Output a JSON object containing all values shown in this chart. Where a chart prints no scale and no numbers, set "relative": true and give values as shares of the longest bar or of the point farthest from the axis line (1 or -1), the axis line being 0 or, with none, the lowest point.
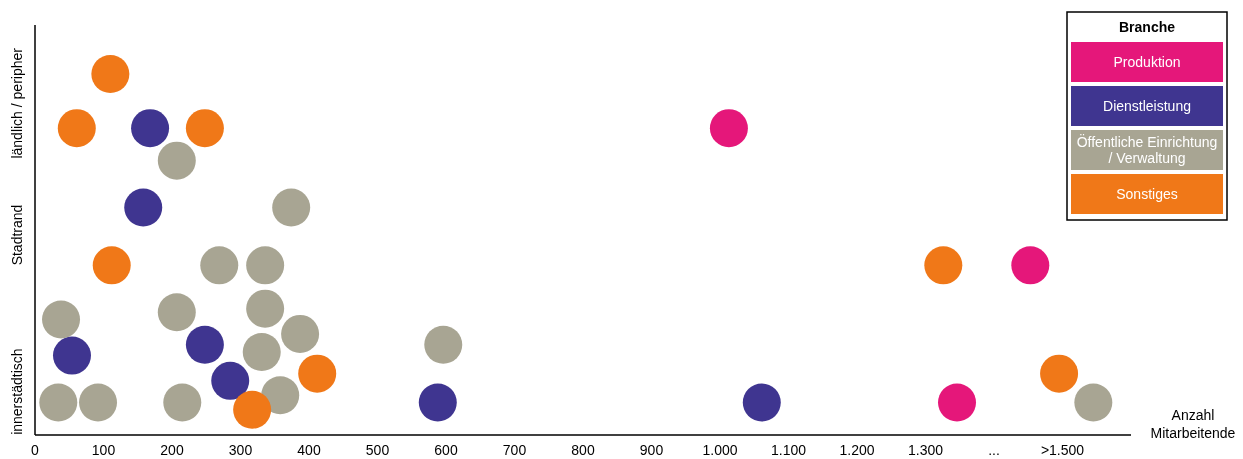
{
  "chart_data": {
    "type": "scatter",
    "xlabel": "Anzahl Mitarbeitende",
    "legend_title": "Branche",
    "legend": "top right",
    "marker": "circle",
    "relative": true,
    "annotations": [
      "innerstädtisch",
      "Stadtrand",
      "ländlich / peripher"
    ],
    "xlim": [
      0,
      1600
    ],
    "xticks": [
      0,
      100,
      200,
      300,
      400,
      500,
      600,
      700,
      800,
      900,
      {
        "value": 1000,
        "label": "1.000"
      },
      {
        "value": 1100,
        "label": "1.100"
      },
      {
        "value": 1200,
        "label": "1.200"
      },
      {
        "value": 1300,
        "label": "1.300"
      },
      {
        "value": 1400,
        "label": "..."
      },
      {
        "value": 1500,
        "label": ">1.500"
      }
    ],
    "series": [
      {
        "name": "Produktion",
        "color": "#e5177a",
        "x": [
          1013,
          1453,
          1346
        ],
        "values": [
          0.85,
          0.47,
          0.09
        ]
      },
      {
        "name": "Dienstleistung",
        "color": "#3f3590",
        "x": [
          168,
          158,
          54,
          248,
          285,
          588,
          1061
        ],
        "values": [
          0.85,
          0.63,
          0.22,
          0.25,
          0.15,
          0.09,
          0.09
        ]
      },
      {
        "name": "Öffentliche Einrichtung / Verwaltung",
        "color": "#a8a593",
        "x": [
          207,
          374,
          269,
          336,
          38,
          207,
          336,
          387,
          331,
          596,
          34,
          92,
          215,
          358,
          1545
        ],
        "values": [
          0.76,
          0.63,
          0.47,
          0.47,
          0.32,
          0.34,
          0.35,
          0.28,
          0.23,
          0.25,
          0.09,
          0.09,
          0.09,
          0.11,
          0.09
        ]
      },
      {
        "name": "Sonstiges",
        "color": "#f07818",
        "x": [
          110,
          61,
          248,
          112,
          412,
          317,
          1326,
          1495
        ],
        "values": [
          1,
          0.85,
          0.85,
          0.47,
          0.17,
          0.07,
          0.47,
          0.17
        ]
      }
    ]
  }
}
